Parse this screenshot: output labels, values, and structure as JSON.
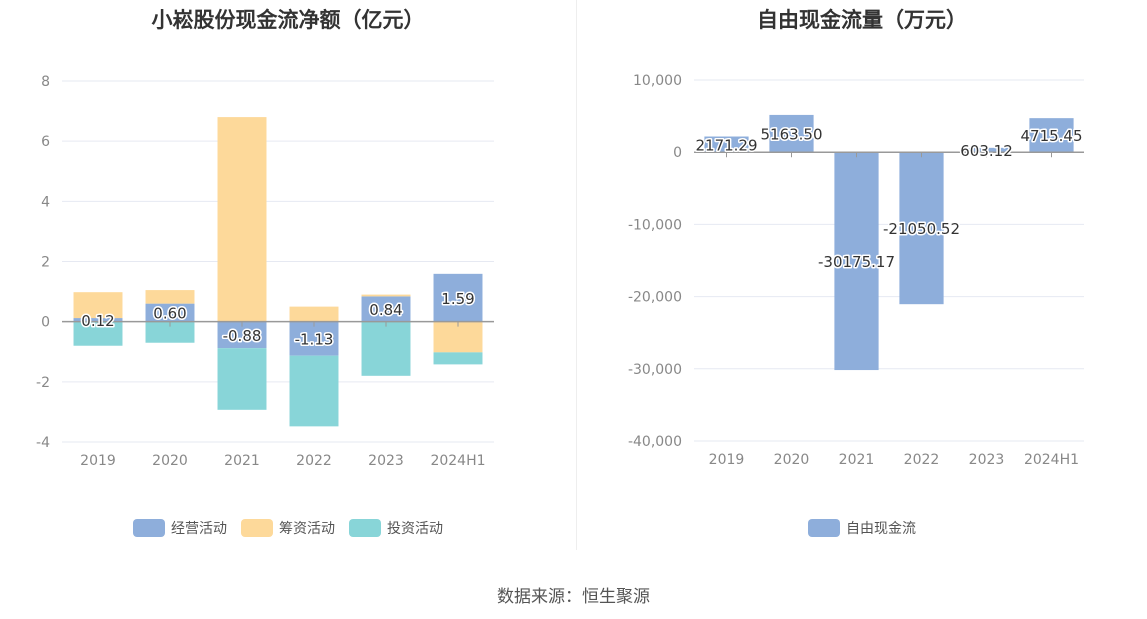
{
  "chart_data": [
    {
      "type": "bar",
      "stacked": true,
      "title": "小崧股份现金流净额（亿元）",
      "categories": [
        "2019",
        "2020",
        "2021",
        "2022",
        "2023",
        "2024H1"
      ],
      "series": [
        {
          "name": "经营活动",
          "color": "#8eaedb",
          "values": [
            0.12,
            0.6,
            -0.88,
            -1.13,
            0.84,
            1.59
          ]
        },
        {
          "name": "筹资活动",
          "color": "#fdd99a",
          "values": [
            0.86,
            0.45,
            6.8,
            0.5,
            0.06,
            -1.02
          ]
        },
        {
          "name": "投资活动",
          "color": "#88d5d8",
          "values": [
            -0.8,
            -0.7,
            -2.05,
            -2.35,
            -1.8,
            -0.4
          ]
        }
      ],
      "data_labels": [
        "0.12",
        "0.60",
        "-0.88",
        "-1.13",
        "0.84",
        "1.59"
      ],
      "yticks": [
        "8",
        "6",
        "4",
        "2",
        "0",
        "-2",
        "-4"
      ],
      "ylim": [
        -4,
        8
      ],
      "grid": true,
      "legend_position": "bottom"
    },
    {
      "type": "bar",
      "title": "自由现金流量（万元）",
      "categories": [
        "2019",
        "2020",
        "2021",
        "2022",
        "2023",
        "2024H1"
      ],
      "series": [
        {
          "name": "自由现金流",
          "color": "#8eaedb",
          "values": [
            2171.29,
            5163.5,
            -30175.17,
            -21050.52,
            603.12,
            4715.45
          ]
        }
      ],
      "data_labels": [
        "2171.29",
        "5163.50",
        "-30175.17",
        "-21050.52",
        "603.12",
        "4715.45"
      ],
      "yticks": [
        "10,000",
        "0",
        "-10,000",
        "-20,000",
        "-30,000",
        "-40,000"
      ],
      "ylim": [
        -40000,
        10000
      ],
      "grid": true,
      "legend_position": "bottom"
    }
  ],
  "footer": {
    "source": "数据来源：恒生聚源"
  }
}
